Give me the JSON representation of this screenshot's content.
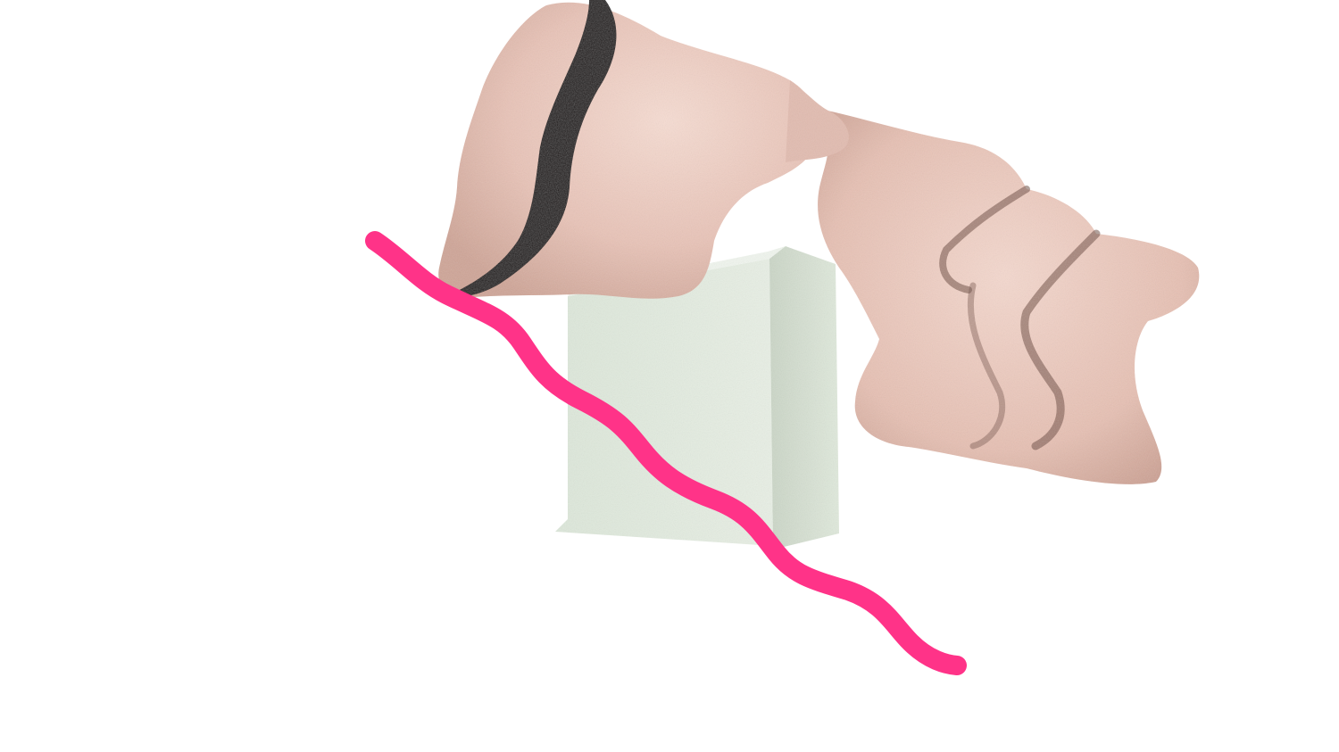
{
  "scene": {
    "background_color": "#ffffff",
    "objects": [
      {
        "name": "pale-green-box",
        "color": "#e4ede1",
        "shade_color": "#c9d4c6"
      },
      {
        "name": "pink-wavy-blob",
        "color": "#e8c3b7",
        "crease_color": "#1e1412"
      },
      {
        "name": "magenta-wavy-line",
        "color": "#ff3388"
      }
    ]
  }
}
